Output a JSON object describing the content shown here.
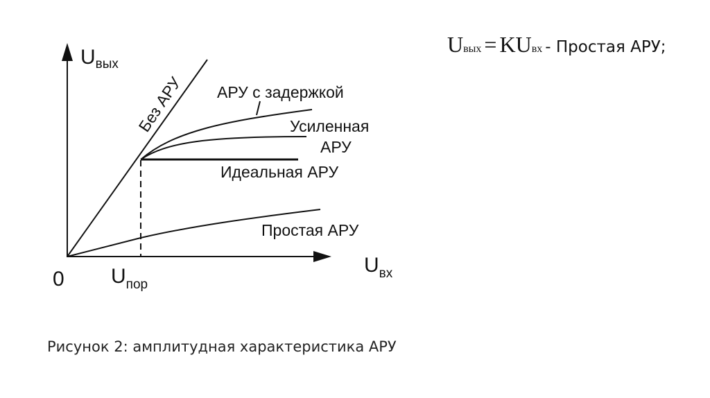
{
  "formula": {
    "lhs_main": "U",
    "lhs_sub": "вых",
    "equals": "=",
    "rhs_main": "KU",
    "rhs_sub": "вх",
    "description": "- Простая АРУ;"
  },
  "diagram": {
    "y_axis_label": "U",
    "y_axis_sub": "вых",
    "x_axis_label": "U",
    "x_axis_sub": "вх",
    "origin_label": "0",
    "threshold_label": "U",
    "threshold_sub": "пор",
    "curves": {
      "no_agc": "Без АРУ",
      "delayed_agc": "АРУ с задержкой",
      "amplified_agc_line1": "Усиленная",
      "amplified_agc_line2": "АРУ",
      "ideal_agc": "Идеальная АРУ",
      "simple_agc": "Простая АРУ"
    }
  },
  "caption": "Рисунок 2: амплитудная характеристика АРУ"
}
